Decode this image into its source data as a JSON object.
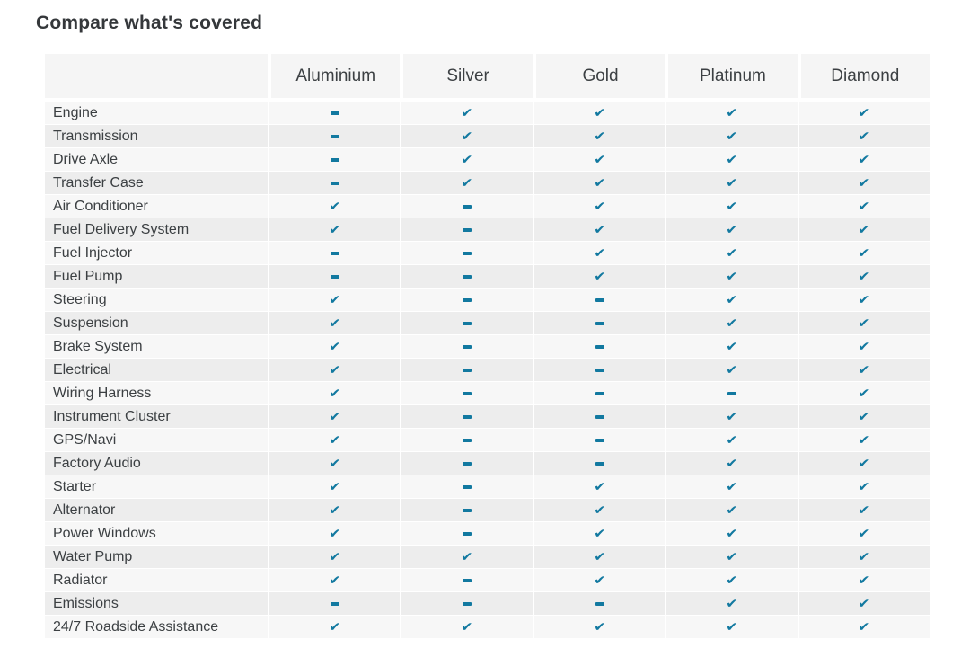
{
  "page": {
    "title": "Compare what's covered"
  },
  "colors": {
    "accent_teal": "#1279a0",
    "row_light": "#f7f7f7",
    "row_dark": "#ededed",
    "header_bg": "#f5f5f5",
    "text": "#3c4043"
  },
  "icons": {
    "covered": "check-icon",
    "not_covered": "dash-icon",
    "check_glyph": "✔"
  },
  "table": {
    "plans": [
      "Aluminium",
      "Silver",
      "Gold",
      "Platinum",
      "Diamond"
    ],
    "rows": [
      {
        "label": "Engine",
        "covered": [
          false,
          true,
          true,
          true,
          true
        ]
      },
      {
        "label": "Transmission",
        "covered": [
          false,
          true,
          true,
          true,
          true
        ]
      },
      {
        "label": "Drive Axle",
        "covered": [
          false,
          true,
          true,
          true,
          true
        ]
      },
      {
        "label": "Transfer Case",
        "covered": [
          false,
          true,
          true,
          true,
          true
        ]
      },
      {
        "label": "Air Conditioner",
        "covered": [
          true,
          false,
          true,
          true,
          true
        ]
      },
      {
        "label": "Fuel Delivery System",
        "covered": [
          true,
          false,
          true,
          true,
          true
        ]
      },
      {
        "label": "Fuel Injector",
        "covered": [
          false,
          false,
          true,
          true,
          true
        ]
      },
      {
        "label": "Fuel Pump",
        "covered": [
          false,
          false,
          true,
          true,
          true
        ]
      },
      {
        "label": "Steering",
        "covered": [
          true,
          false,
          false,
          true,
          true
        ]
      },
      {
        "label": "Suspension",
        "covered": [
          true,
          false,
          false,
          true,
          true
        ]
      },
      {
        "label": "Brake System",
        "covered": [
          true,
          false,
          false,
          true,
          true
        ]
      },
      {
        "label": "Electrical",
        "covered": [
          true,
          false,
          false,
          true,
          true
        ]
      },
      {
        "label": "Wiring Harness",
        "covered": [
          true,
          false,
          false,
          false,
          true
        ]
      },
      {
        "label": "Instrument Cluster",
        "covered": [
          true,
          false,
          false,
          true,
          true
        ]
      },
      {
        "label": "GPS/Navi",
        "covered": [
          true,
          false,
          false,
          true,
          true
        ]
      },
      {
        "label": "Factory Audio",
        "covered": [
          true,
          false,
          false,
          true,
          true
        ]
      },
      {
        "label": "Starter",
        "covered": [
          true,
          false,
          true,
          true,
          true
        ]
      },
      {
        "label": "Alternator",
        "covered": [
          true,
          false,
          true,
          true,
          true
        ]
      },
      {
        "label": "Power Windows",
        "covered": [
          true,
          false,
          true,
          true,
          true
        ]
      },
      {
        "label": "Water Pump",
        "covered": [
          true,
          true,
          true,
          true,
          true
        ]
      },
      {
        "label": "Radiator",
        "covered": [
          true,
          false,
          true,
          true,
          true
        ]
      },
      {
        "label": "Emissions",
        "covered": [
          false,
          false,
          false,
          true,
          true
        ]
      },
      {
        "label": "24/7 Roadside Assistance",
        "covered": [
          true,
          true,
          true,
          true,
          true
        ]
      }
    ]
  }
}
